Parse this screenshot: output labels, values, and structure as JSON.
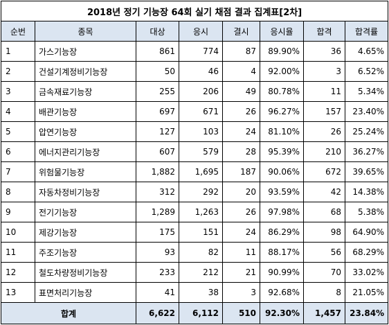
{
  "title": "2018년 정기 기능장 64회 실기 채점 결과 집계표[2차]",
  "headers": [
    "순번",
    "종목",
    "대상",
    "응시",
    "결시",
    "응시율",
    "합격",
    "합격률"
  ],
  "rows": [
    {
      "no": "1",
      "name": "가스기능장",
      "target": "861",
      "applied": "774",
      "absent": "87",
      "rate": "89.90%",
      "passed": "36",
      "pass_rate": "4.65%"
    },
    {
      "no": "2",
      "name": "건설기계정비기능장",
      "target": "50",
      "applied": "46",
      "absent": "4",
      "rate": "92.00%",
      "passed": "3",
      "pass_rate": "6.52%"
    },
    {
      "no": "3",
      "name": "금속재료기능장",
      "target": "255",
      "applied": "206",
      "absent": "49",
      "rate": "80.78%",
      "passed": "11",
      "pass_rate": "5.34%"
    },
    {
      "no": "4",
      "name": "배관기능장",
      "target": "697",
      "applied": "671",
      "absent": "26",
      "rate": "96.27%",
      "passed": "157",
      "pass_rate": "23.40%"
    },
    {
      "no": "5",
      "name": "압연기능장",
      "target": "127",
      "applied": "103",
      "absent": "24",
      "rate": "81.10%",
      "passed": "26",
      "pass_rate": "25.24%"
    },
    {
      "no": "6",
      "name": "에너지관리기능장",
      "target": "607",
      "applied": "579",
      "absent": "28",
      "rate": "95.39%",
      "passed": "210",
      "pass_rate": "36.27%"
    },
    {
      "no": "7",
      "name": "위험물기능장",
      "target": "1,882",
      "applied": "1,695",
      "absent": "187",
      "rate": "90.06%",
      "passed": "672",
      "pass_rate": "39.65%"
    },
    {
      "no": "8",
      "name": "자동차정비기능장",
      "target": "312",
      "applied": "292",
      "absent": "20",
      "rate": "93.59%",
      "passed": "42",
      "pass_rate": "14.38%"
    },
    {
      "no": "9",
      "name": "전기기능장",
      "target": "1,289",
      "applied": "1,263",
      "absent": "26",
      "rate": "97.98%",
      "passed": "68",
      "pass_rate": "5.38%"
    },
    {
      "no": "10",
      "name": "제강기능장",
      "target": "175",
      "applied": "151",
      "absent": "24",
      "rate": "86.29%",
      "passed": "98",
      "pass_rate": "64.90%"
    },
    {
      "no": "11",
      "name": "주조기능장",
      "target": "93",
      "applied": "82",
      "absent": "11",
      "rate": "88.17%",
      "passed": "56",
      "pass_rate": "68.29%"
    },
    {
      "no": "12",
      "name": "철도차량정비기능장",
      "target": "233",
      "applied": "212",
      "absent": "21",
      "rate": "90.99%",
      "passed": "70",
      "pass_rate": "33.02%"
    },
    {
      "no": "13",
      "name": "표면처리기능장",
      "target": "41",
      "applied": "38",
      "absent": "3",
      "rate": "92.68%",
      "passed": "8",
      "pass_rate": "21.05%"
    }
  ],
  "total": {
    "label": "합계",
    "target": "6,622",
    "applied": "6,112",
    "absent": "510",
    "rate": "92.30%",
    "passed": "1,457",
    "pass_rate": "23.84%"
  },
  "colors": {
    "header_bg": "#dbe5f1",
    "border": "#000000"
  }
}
